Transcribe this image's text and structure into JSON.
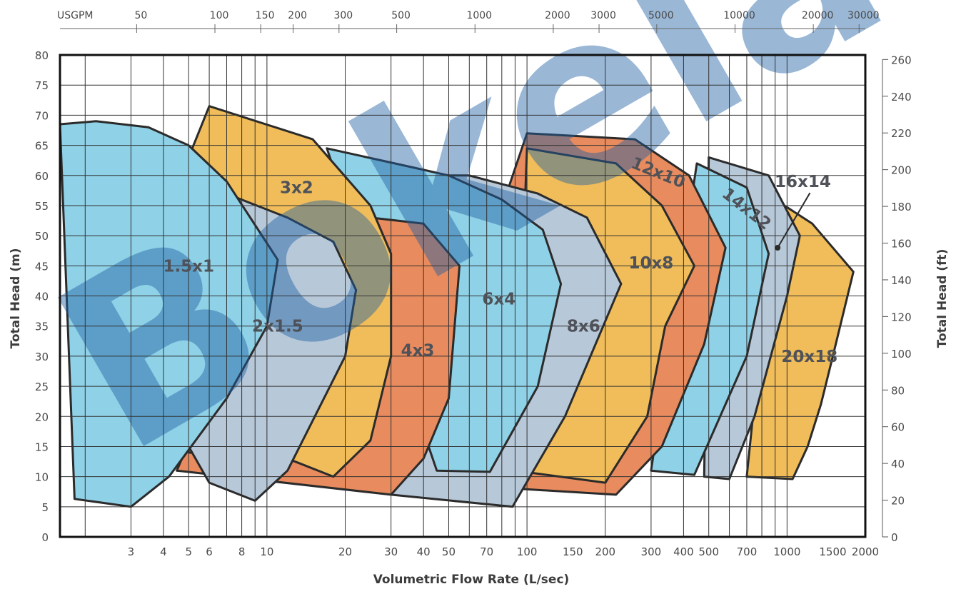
{
  "chart_data": {
    "type": "area",
    "title": "",
    "xlabel": "Volumetric Flow Rate (L/sec)",
    "ylabel": "Total Head (m)",
    "ylabel_right": "Total Head (ft)",
    "x_scale": "log",
    "xlim": [
      1.6,
      2000
    ],
    "ylim": [
      0,
      80
    ],
    "x_ticks": [
      3,
      4,
      5,
      6,
      8,
      10,
      20,
      30,
      40,
      50,
      70,
      100,
      150,
      200,
      300,
      400,
      500,
      700,
      1000,
      1500,
      2000
    ],
    "y_ticks": [
      0,
      5,
      10,
      15,
      20,
      25,
      30,
      35,
      40,
      45,
      50,
      55,
      60,
      65,
      70,
      75,
      80
    ],
    "secondary_y_ticks_ft": [
      0,
      20,
      40,
      60,
      80,
      100,
      120,
      140,
      160,
      180,
      200,
      220,
      240,
      260
    ],
    "top_axis": {
      "unit_label": "USGPM",
      "ticks": [
        50,
        100,
        150,
        200,
        300,
        500,
        1000,
        2000,
        3000,
        5000,
        10000,
        20000,
        30000
      ]
    },
    "grid": true,
    "watermark": "Bokela",
    "series": [
      {
        "name": "20x18",
        "color": "#f0bd5a",
        "label_at": [
          1220,
          30
        ],
        "points": [
          [
            700,
            10
          ],
          [
            1050,
            9.6
          ],
          [
            1200,
            15
          ],
          [
            1350,
            22
          ],
          [
            1500,
            30
          ],
          [
            1800,
            44
          ],
          [
            1250,
            52
          ],
          [
            900,
            56
          ]
        ]
      },
      {
        "name": "16x14",
        "color": "#b7c8d8",
        "label_at": [
          1150,
          59
        ],
        "points": [
          [
            480,
            10
          ],
          [
            600,
            9.6
          ],
          [
            750,
            20
          ],
          [
            1000,
            40
          ],
          [
            1120,
            50
          ],
          [
            850,
            60
          ],
          [
            500,
            63
          ]
        ]
      },
      {
        "name": "14x12",
        "color": "#8fd1e6",
        "label_at": [
          700,
          54.5
        ],
        "label_rotate": 38,
        "points": [
          [
            300,
            11
          ],
          [
            440,
            10.3
          ],
          [
            700,
            30
          ],
          [
            850,
            47
          ],
          [
            700,
            58
          ],
          [
            450,
            62
          ]
        ]
      },
      {
        "name": "12x10",
        "color": "#e88b5e",
        "label_at": [
          320,
          60.5
        ],
        "label_rotate": 22,
        "points": [
          [
            92,
            8
          ],
          [
            220,
            7
          ],
          [
            330,
            15
          ],
          [
            480,
            32
          ],
          [
            580,
            48
          ],
          [
            420,
            60
          ],
          [
            260,
            66
          ],
          [
            100,
            67
          ],
          [
            85,
            58
          ]
        ]
      },
      {
        "name": "10x8",
        "color": "#f0bd5a",
        "label_at": [
          300,
          45.5
        ],
        "points": [
          [
            90,
            11
          ],
          [
            200,
            9
          ],
          [
            290,
            20
          ],
          [
            340,
            35
          ],
          [
            440,
            45
          ],
          [
            330,
            55
          ],
          [
            220,
            62
          ],
          [
            100,
            64.5
          ]
        ]
      },
      {
        "name": "8x6",
        "color": "#b7c8d8",
        "label_at": [
          165,
          35
        ],
        "points": [
          [
            30,
            7
          ],
          [
            88,
            5
          ],
          [
            140,
            20
          ],
          [
            230,
            42
          ],
          [
            170,
            53
          ],
          [
            110,
            57
          ],
          [
            60,
            60
          ],
          [
            40,
            60
          ]
        ]
      },
      {
        "name": "6x4",
        "color": "#8fd1e6",
        "label_at": [
          78,
          39.5
        ],
        "points": [
          [
            45,
            11
          ],
          [
            72,
            10.8
          ],
          [
            110,
            25
          ],
          [
            135,
            42
          ],
          [
            115,
            51
          ],
          [
            80,
            56
          ],
          [
            50,
            60
          ],
          [
            35,
            61.5
          ],
          [
            17,
            64.5
          ]
        ]
      },
      {
        "name": "4x3",
        "color": "#e88b5e",
        "label_at": [
          38,
          31
        ],
        "points": [
          [
            4.5,
            11
          ],
          [
            30,
            7
          ],
          [
            40,
            13
          ],
          [
            50,
            23
          ],
          [
            55,
            45
          ],
          [
            40,
            52
          ],
          [
            25,
            53
          ],
          [
            10,
            46
          ]
        ]
      },
      {
        "name": "3x2",
        "color": "#f0bd5a",
        "label_at": [
          13,
          58
        ],
        "points": [
          [
            5,
            14
          ],
          [
            12,
            13
          ],
          [
            18,
            10
          ],
          [
            25,
            16
          ],
          [
            30,
            30
          ],
          [
            30,
            47
          ],
          [
            25,
            55
          ],
          [
            15,
            66
          ],
          [
            6,
            71.5
          ],
          [
            5,
            63
          ]
        ]
      },
      {
        "name": "2x1.5",
        "color": "#b7c8d8",
        "label_at": [
          11,
          35
        ],
        "points": [
          [
            5,
            15
          ],
          [
            6,
            9
          ],
          [
            9,
            6
          ],
          [
            12,
            11
          ],
          [
            20,
            30
          ],
          [
            22,
            41
          ],
          [
            18,
            49
          ],
          [
            12,
            53
          ],
          [
            6.5,
            57.5
          ],
          [
            5,
            50
          ]
        ]
      },
      {
        "name": "1.5x1",
        "color": "#8fd1e6",
        "label_at": [
          5,
          45
        ],
        "points": [
          [
            1.6,
            68.5
          ],
          [
            1.82,
            6.3
          ],
          [
            3,
            5
          ],
          [
            4.2,
            10
          ],
          [
            7,
            23
          ],
          [
            10,
            35
          ],
          [
            11,
            46
          ],
          [
            7,
            59
          ],
          [
            5,
            65
          ],
          [
            3.5,
            68
          ],
          [
            2.2,
            69
          ]
        ]
      }
    ]
  }
}
